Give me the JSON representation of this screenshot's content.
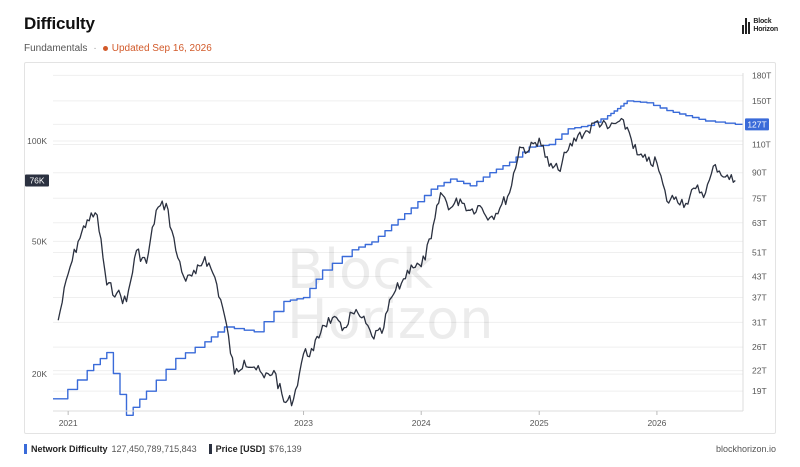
{
  "header": {
    "title": "Difficulty",
    "category": "Fundamentals",
    "separator": "·",
    "updated": "Updated Sep 16, 2026"
  },
  "logo": {
    "line1": "Block",
    "line2": "Horizon"
  },
  "watermark": {
    "line1": "Block",
    "line2": "Horizon"
  },
  "footer": {
    "legend": [
      {
        "name": "Network Difficulty",
        "value": "127,450,789,715,843",
        "color": "#3a6bd9"
      },
      {
        "name": "Price [USD]",
        "value": "$76,139",
        "color": "#2b3140"
      }
    ],
    "site": "blockhorizon.io"
  },
  "chart_data": {
    "type": "line",
    "x_ticks": [
      "2021",
      "2023",
      "2024",
      "2025",
      "2026"
    ],
    "y_left": {
      "label": "Price [USD]",
      "scale": "log",
      "ticks": [
        "20K",
        "50K",
        "100K"
      ],
      "current_label": "76K"
    },
    "y_right": {
      "label": "Network Difficulty",
      "scale": "log",
      "ticks": [
        "19T",
        "22T",
        "26T",
        "31T",
        "37T",
        "43T",
        "51T",
        "63T",
        "75T",
        "90T",
        "110T",
        "127T",
        "150T",
        "180T"
      ],
      "current_label": "127T"
    },
    "grid": "horizontal",
    "series": [
      {
        "name": "Network Difficulty",
        "color": "#3a6bd9",
        "step": true,
        "points": [
          [
            "2020-12",
            18
          ],
          [
            "2021-03",
            22
          ],
          [
            "2021-05",
            25
          ],
          [
            "2021-07",
            16
          ],
          [
            "2021-09",
            19
          ],
          [
            "2021-12",
            24
          ],
          [
            "2022-03",
            27
          ],
          [
            "2022-05",
            30
          ],
          [
            "2022-08",
            29
          ],
          [
            "2022-11",
            36
          ],
          [
            "2023-01",
            37
          ],
          [
            "2023-03",
            45
          ],
          [
            "2023-06",
            52
          ],
          [
            "2023-08",
            55
          ],
          [
            "2023-10",
            62
          ],
          [
            "2023-12",
            70
          ],
          [
            "2024-02",
            80
          ],
          [
            "2024-04",
            86
          ],
          [
            "2024-06",
            82
          ],
          [
            "2024-08",
            90
          ],
          [
            "2024-10",
            97
          ],
          [
            "2024-12",
            108
          ],
          [
            "2025-02",
            110
          ],
          [
            "2025-04",
            123
          ],
          [
            "2025-06",
            126
          ],
          [
            "2025-08",
            135
          ],
          [
            "2025-09",
            142
          ],
          [
            "2025-10",
            150
          ],
          [
            "2025-12",
            148
          ],
          [
            "2026-02",
            140
          ],
          [
            "2026-04",
            135
          ],
          [
            "2026-06",
            130
          ],
          [
            "2026-09",
            127
          ]
        ]
      },
      {
        "name": "Price [USD]",
        "color": "#2b3140",
        "step": false,
        "points": [
          [
            "2020-12",
            29000
          ],
          [
            "2021-01",
            40000
          ],
          [
            "2021-02",
            50000
          ],
          [
            "2021-03",
            58000
          ],
          [
            "2021-04",
            60000
          ],
          [
            "2021-05",
            37000
          ],
          [
            "2021-06",
            35000
          ],
          [
            "2021-07",
            33000
          ],
          [
            "2021-08",
            47000
          ],
          [
            "2021-09",
            43000
          ],
          [
            "2021-10",
            62000
          ],
          [
            "2021-11",
            65000
          ],
          [
            "2021-12",
            47000
          ],
          [
            "2022-01",
            38000
          ],
          [
            "2022-02",
            40000
          ],
          [
            "2022-03",
            45000
          ],
          [
            "2022-04",
            39000
          ],
          [
            "2022-05",
            30000
          ],
          [
            "2022-06",
            20000
          ],
          [
            "2022-07",
            22000
          ],
          [
            "2022-08",
            21000
          ],
          [
            "2022-09",
            19500
          ],
          [
            "2022-10",
            20500
          ],
          [
            "2022-11",
            16500
          ],
          [
            "2022-12",
            16800
          ],
          [
            "2023-01",
            23000
          ],
          [
            "2023-02",
            23500
          ],
          [
            "2023-03",
            28000
          ],
          [
            "2023-04",
            29500
          ],
          [
            "2023-05",
            27000
          ],
          [
            "2023-06",
            30500
          ],
          [
            "2023-07",
            29500
          ],
          [
            "2023-08",
            26000
          ],
          [
            "2023-09",
            26500
          ],
          [
            "2023-10",
            34000
          ],
          [
            "2023-11",
            37500
          ],
          [
            "2023-12",
            42500
          ],
          [
            "2024-01",
            42000
          ],
          [
            "2024-02",
            51000
          ],
          [
            "2024-03",
            70000
          ],
          [
            "2024-04",
            63000
          ],
          [
            "2024-05",
            67000
          ],
          [
            "2024-06",
            62000
          ],
          [
            "2024-07",
            64000
          ],
          [
            "2024-08",
            59000
          ],
          [
            "2024-09",
            63000
          ],
          [
            "2024-10",
            70000
          ],
          [
            "2024-11",
            96000
          ],
          [
            "2024-12",
            94000
          ],
          [
            "2025-01",
            102000
          ],
          [
            "2025-02",
            84000
          ],
          [
            "2025-03",
            82000
          ],
          [
            "2025-04",
            94000
          ],
          [
            "2025-05",
            104000
          ],
          [
            "2025-06",
            107000
          ],
          [
            "2025-07",
            115000
          ],
          [
            "2025-08",
            109000
          ],
          [
            "2025-09",
            114000
          ],
          [
            "2025-10",
            110000
          ],
          [
            "2025-11",
            91000
          ],
          [
            "2025-12",
            87000
          ],
          [
            "2026-01",
            86000
          ],
          [
            "2026-02",
            66000
          ],
          [
            "2026-03",
            68000
          ],
          [
            "2026-04",
            65000
          ],
          [
            "2026-05",
            72000
          ],
          [
            "2026-06",
            70000
          ],
          [
            "2026-07",
            85000
          ],
          [
            "2026-08",
            78000
          ],
          [
            "2026-09",
            76139
          ]
        ]
      }
    ]
  }
}
